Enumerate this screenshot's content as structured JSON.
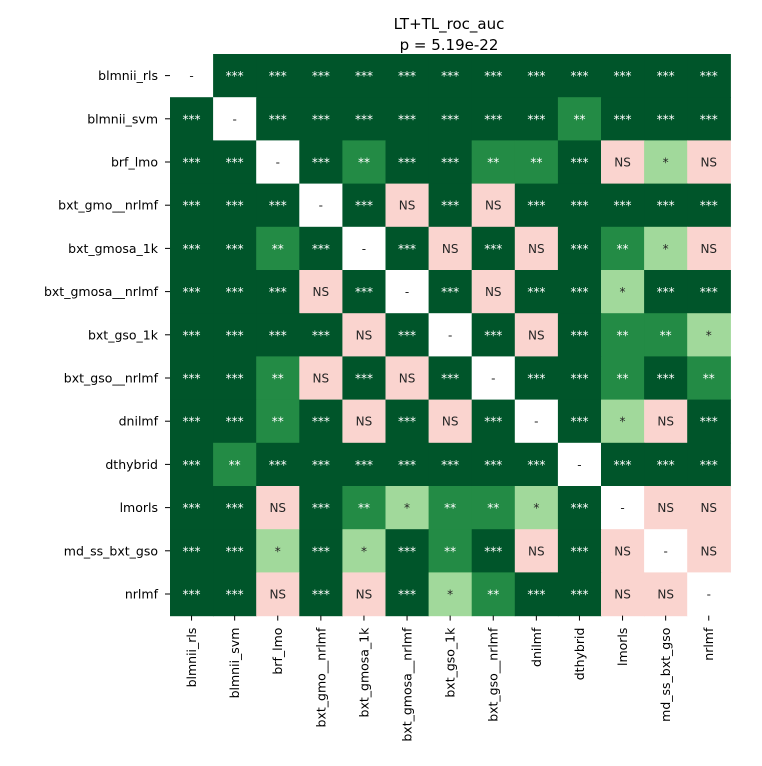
{
  "chart_data": {
    "type": "heatmap",
    "title": "LT+TL_roc_auc",
    "subtitle": "p = 5.19e-22",
    "xlabel": "",
    "ylabel": "",
    "colorbar": false,
    "rows": [
      "blmnii_rls",
      "blmnii_svm",
      "brf_lmo",
      "bxt_gmo__nrlmf",
      "bxt_gmosa_1k",
      "bxt_gmosa__nrlmf",
      "bxt_gso_1k",
      "bxt_gso__nrlmf",
      "dnilmf",
      "dthybrid",
      "lmorls",
      "md_ss_bxt_gso",
      "nrlmf"
    ],
    "columns": [
      "blmnii_rls",
      "blmnii_svm",
      "brf_lmo",
      "bxt_gmo__nrlmf",
      "bxt_gmosa_1k",
      "bxt_gmosa__nrlmf",
      "bxt_gso_1k",
      "bxt_gso__nrlmf",
      "dnilmf",
      "dthybrid",
      "lmorls",
      "md_ss_bxt_gso",
      "nrlmf"
    ],
    "colors": {
      "***": "#00552a",
      "**": "#238b45",
      "*": "#a1d99b",
      "NS": "#fad4cf",
      "-": "#ffffff"
    },
    "text_colors": {
      "***": "#ffffff",
      "**": "#ffffff",
      "*": "#262626",
      "NS": "#262626",
      "-": "#262626"
    },
    "cells": [
      [
        "-",
        "***",
        "***",
        "***",
        "***",
        "***",
        "***",
        "***",
        "***",
        "***",
        "***",
        "***",
        "***"
      ],
      [
        "***",
        "-",
        "***",
        "***",
        "***",
        "***",
        "***",
        "***",
        "***",
        "**",
        "***",
        "***",
        "***"
      ],
      [
        "***",
        "***",
        "-",
        "***",
        "**",
        "***",
        "***",
        "**",
        "**",
        "***",
        "NS",
        "*",
        "NS"
      ],
      [
        "***",
        "***",
        "***",
        "-",
        "***",
        "NS",
        "***",
        "NS",
        "***",
        "***",
        "***",
        "***",
        "***"
      ],
      [
        "***",
        "***",
        "**",
        "***",
        "-",
        "***",
        "NS",
        "***",
        "NS",
        "***",
        "**",
        "*",
        "NS"
      ],
      [
        "***",
        "***",
        "***",
        "NS",
        "***",
        "-",
        "***",
        "NS",
        "***",
        "***",
        "*",
        "***",
        "***"
      ],
      [
        "***",
        "***",
        "***",
        "***",
        "NS",
        "***",
        "-",
        "***",
        "NS",
        "***",
        "**",
        "**",
        "*"
      ],
      [
        "***",
        "***",
        "**",
        "NS",
        "***",
        "NS",
        "***",
        "-",
        "***",
        "***",
        "**",
        "***",
        "**"
      ],
      [
        "***",
        "***",
        "**",
        "***",
        "NS",
        "***",
        "NS",
        "***",
        "-",
        "***",
        "*",
        "NS",
        "***"
      ],
      [
        "***",
        "**",
        "***",
        "***",
        "***",
        "***",
        "***",
        "***",
        "***",
        "-",
        "***",
        "***",
        "***"
      ],
      [
        "***",
        "***",
        "NS",
        "***",
        "**",
        "*",
        "**",
        "**",
        "*",
        "***",
        "-",
        "NS",
        "NS"
      ],
      [
        "***",
        "***",
        "*",
        "***",
        "*",
        "***",
        "**",
        "***",
        "NS",
        "***",
        "NS",
        "-",
        "NS"
      ],
      [
        "***",
        "***",
        "NS",
        "***",
        "NS",
        "***",
        "*",
        "**",
        "***",
        "***",
        "NS",
        "NS",
        "-"
      ]
    ]
  }
}
